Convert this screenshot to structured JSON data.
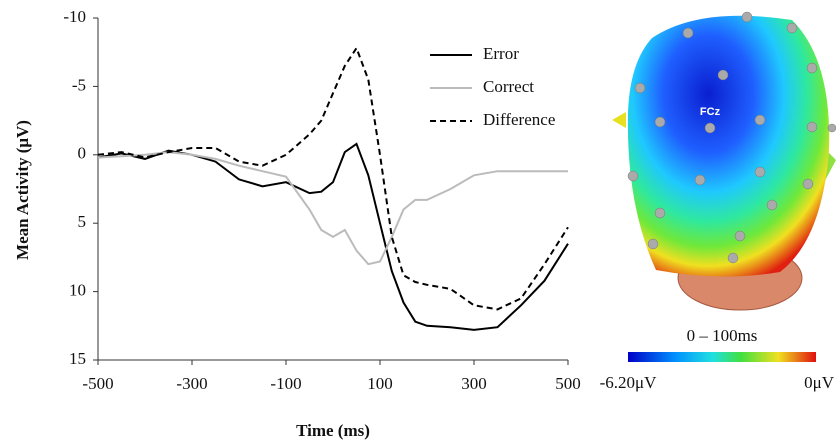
{
  "chart_data": {
    "type": "line",
    "x_label": "Time (ms)",
    "y_label": "Mean Activity (μV)",
    "x": [
      -500,
      -450,
      -400,
      -350,
      -300,
      -250,
      -200,
      -150,
      -100,
      -50,
      -25,
      0,
      25,
      50,
      75,
      100,
      125,
      150,
      175,
      200,
      250,
      300,
      350,
      400,
      450,
      500
    ],
    "series": [
      {
        "name": "Error",
        "color": "#000000",
        "linestyle": "solid",
        "values": [
          0.2,
          -0.1,
          0.3,
          -0.3,
          0,
          0.5,
          1.8,
          2.3,
          2.0,
          2.8,
          2.7,
          2.0,
          -0.2,
          -0.8,
          1.5,
          5,
          8.5,
          10.8,
          12.2,
          12.5,
          12.6,
          12.8,
          12.6,
          11,
          9.2,
          6.5
        ]
      },
      {
        "name": "Correct",
        "color": "#bbbbbb",
        "linestyle": "solid",
        "values": [
          0.2,
          0.1,
          0,
          -0.2,
          0,
          0.3,
          0.8,
          1.2,
          1.6,
          4.0,
          5.5,
          6.0,
          5.5,
          7.0,
          8.0,
          7.8,
          6.0,
          4.0,
          3.3,
          3.3,
          2.5,
          1.5,
          1.2,
          1.2,
          1.2,
          1.2
        ]
      },
      {
        "name": "Difference",
        "color": "#000000",
        "linestyle": "dashed",
        "values": [
          0,
          -0.2,
          0.2,
          -0.2,
          -0.5,
          -0.5,
          0.5,
          0.8,
          0,
          -1.5,
          -2.5,
          -4.5,
          -6.5,
          -7.8,
          -5.5,
          0,
          6,
          8.8,
          9.3,
          9.5,
          9.8,
          11,
          11.3,
          10.5,
          8,
          5.3
        ]
      }
    ],
    "xlim": [
      -500,
      500
    ],
    "xticks": [
      -500,
      -300,
      -100,
      100,
      300,
      500
    ],
    "ylim": [
      -10,
      15
    ],
    "yticks": [
      -10,
      -5,
      0,
      5,
      10,
      15
    ],
    "y_inverted": true,
    "legend": "upper right"
  },
  "topomap": {
    "electrode": "FCz",
    "window": "0 – 100ms",
    "scale_min": "-6.20μV",
    "scale_max": "0μV"
  }
}
